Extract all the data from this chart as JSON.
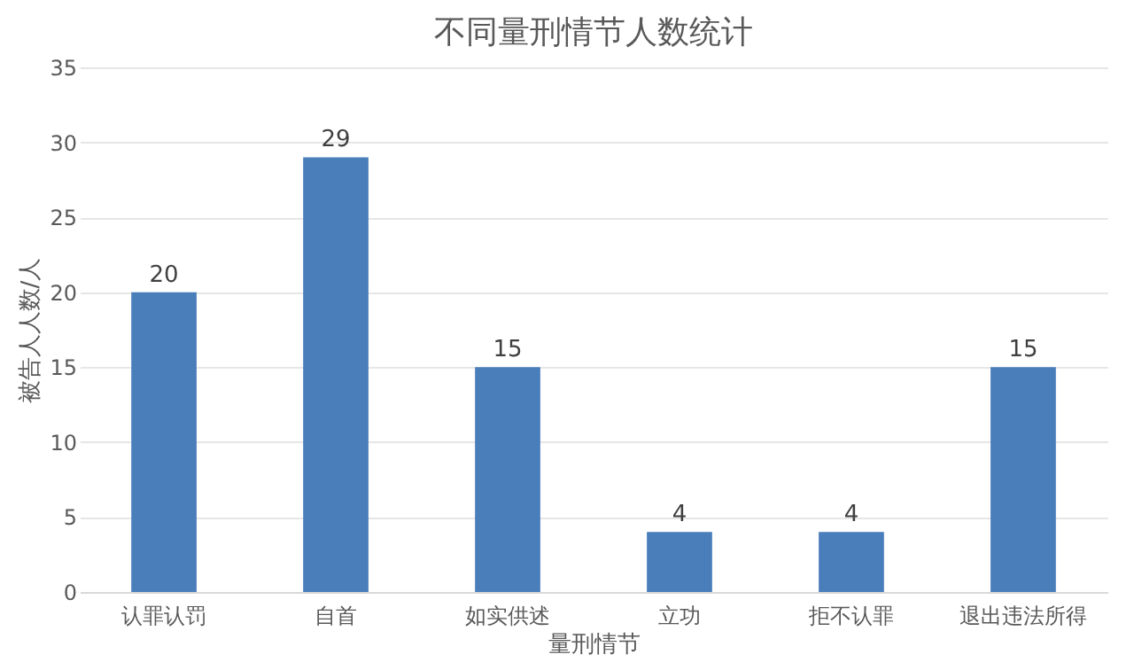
{
  "chart_data": {
    "type": "bar",
    "title": "不同量刑情节人数统计",
    "xlabel": "量刑情节",
    "ylabel": "被告人人数/人",
    "categories": [
      "认罪认罚",
      "自首",
      "如实供述",
      "立功",
      "拒不认罪",
      "退出违法所得"
    ],
    "values": [
      20,
      29,
      15,
      4,
      4,
      15
    ],
    "color": "#4a7ebb",
    "ylim": [
      0,
      35
    ],
    "yticks": [
      0,
      5,
      10,
      15,
      20,
      25,
      30,
      35
    ],
    "grid": "y",
    "data_labels": true
  }
}
